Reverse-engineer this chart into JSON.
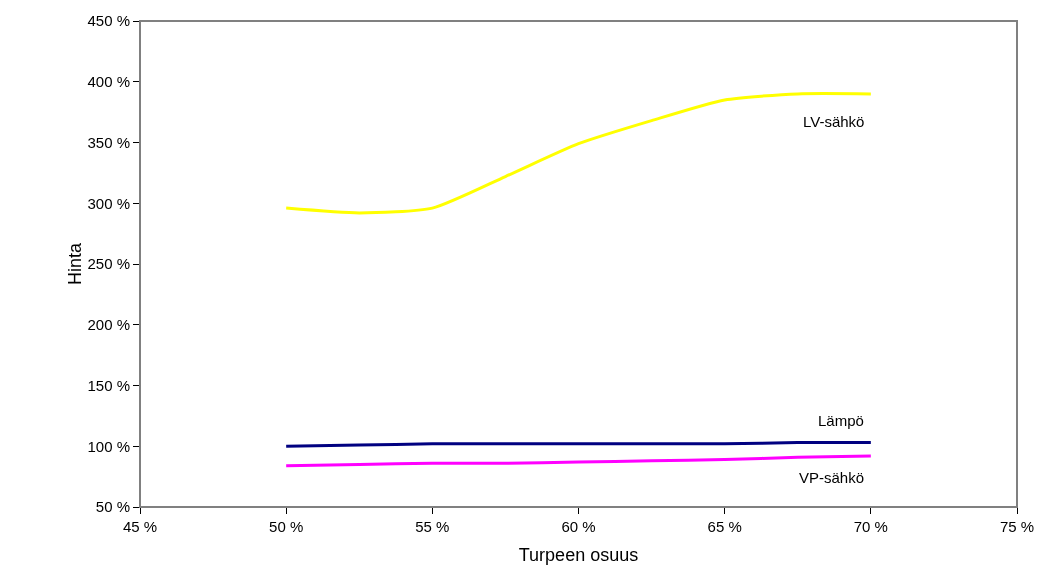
{
  "chart_data": {
    "type": "line",
    "xlabel": "Turpeen osuus",
    "ylabel": "Hinta",
    "x": [
      50,
      52.5,
      55,
      57.5,
      60,
      62.5,
      65,
      67.5,
      70
    ],
    "series": [
      {
        "name": "LV-sähkö",
        "color": "#ffff00",
        "values": [
          296,
          292,
          296,
          322,
          349,
          368,
          385,
          390,
          390
        ]
      },
      {
        "name": "Lämpö",
        "color": "#000080",
        "values": [
          100,
          101,
          102,
          102,
          102,
          102,
          102,
          103,
          103
        ]
      },
      {
        "name": "VP-sähkö",
        "color": "#ff00ff",
        "values": [
          84,
          85,
          86,
          86,
          87,
          88,
          89,
          91,
          92
        ]
      }
    ],
    "xlim": [
      45,
      75
    ],
    "xticks": [
      {
        "value": 45,
        "label": "45 %"
      },
      {
        "value": 50,
        "label": "50 %"
      },
      {
        "value": 55,
        "label": "55 %"
      },
      {
        "value": 60,
        "label": "60 %"
      },
      {
        "value": 65,
        "label": "65 %"
      },
      {
        "value": 70,
        "label": "70 %"
      },
      {
        "value": 75,
        "label": "75 %"
      }
    ],
    "ylim": [
      50,
      450
    ],
    "yticks": [
      {
        "value": 50,
        "label": "50 %"
      },
      {
        "value": 100,
        "label": "100 %"
      },
      {
        "value": 150,
        "label": "150 %"
      },
      {
        "value": 200,
        "label": "200 %"
      },
      {
        "value": 250,
        "label": "250 %"
      },
      {
        "value": 300,
        "label": "300 %"
      },
      {
        "value": 350,
        "label": "350 %"
      },
      {
        "value": 400,
        "label": "400 %"
      },
      {
        "value": 450,
        "label": "450 %"
      }
    ],
    "grid": false,
    "legend": false,
    "marker": "none",
    "line_style": "solid"
  }
}
